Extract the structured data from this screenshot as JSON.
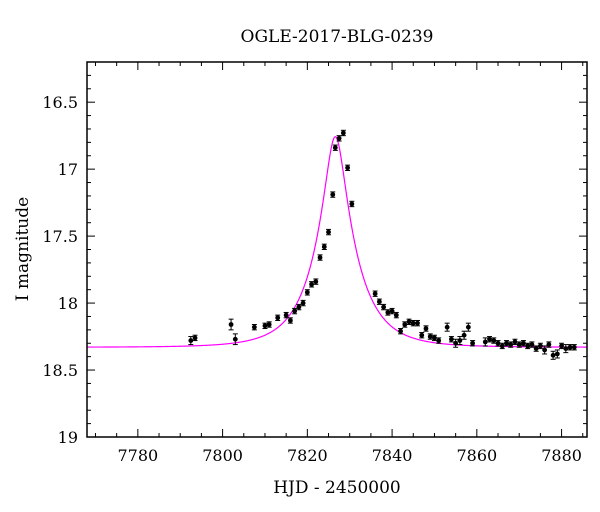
{
  "chart_data": {
    "type": "scatter",
    "title": "OGLE-2017-BLG-0239",
    "xlabel": "HJD - 2450000",
    "ylabel": "I magnitude",
    "xlim": [
      7768,
      7886
    ],
    "ylim": [
      19,
      16.2
    ],
    "y_inverted": true,
    "grid": false,
    "x_ticks": [
      7780,
      7800,
      7820,
      7840,
      7860,
      7880
    ],
    "y_ticks": [
      16.5,
      17,
      17.5,
      18,
      18.5,
      19
    ],
    "x_tick_labels": [
      "7780",
      "7800",
      "7820",
      "7840",
      "7860",
      "7880"
    ],
    "y_tick_labels": [
      "16.5",
      "17",
      "17.5",
      "18",
      "18.5",
      "19"
    ],
    "model": {
      "color": "#ff00ff",
      "curve": "point-lens microlensing fit",
      "t0": 7826.6,
      "u0": 0.24,
      "tE": 9.5,
      "baseline_mag": 18.33
    },
    "points": {
      "color": "#000000",
      "x": [
        7792.5,
        7793.5,
        7802.0,
        7803.0,
        7807.5,
        7810.0,
        7811.0,
        7813.0,
        7815.0,
        7816.0,
        7817.0,
        7818.0,
        7819.0,
        7820.0,
        7821.0,
        7822.0,
        7823.0,
        7824.0,
        7825.0,
        7826.0,
        7826.6,
        7827.5,
        7828.5,
        7829.5,
        7830.5,
        7836.0,
        7837.0,
        7838.0,
        7839.0,
        7840.0,
        7841.0,
        7842.0,
        7843.0,
        7844.0,
        7845.0,
        7846.0,
        7847.0,
        7848.0,
        7849.0,
        7850.0,
        7851.0,
        7853.0,
        7854.0,
        7855.0,
        7856.0,
        7857.0,
        7858.0,
        7859.0,
        7862.0,
        7863.0,
        7864.0,
        7865.0,
        7866.0,
        7867.0,
        7868.0,
        7869.0,
        7870.0,
        7871.0,
        7872.0,
        7873.0,
        7874.0,
        7875.0,
        7876.0,
        7877.0,
        7878.0,
        7879.0,
        7880.0,
        7881.0,
        7882.0,
        7883.0
      ],
      "y": [
        18.28,
        18.26,
        18.16,
        18.27,
        18.18,
        18.17,
        18.16,
        18.11,
        18.09,
        18.13,
        18.06,
        18.03,
        18.0,
        17.92,
        17.86,
        17.84,
        17.66,
        17.58,
        17.47,
        17.19,
        16.84,
        16.77,
        16.73,
        16.99,
        17.26,
        17.93,
        17.99,
        18.03,
        18.07,
        18.06,
        18.09,
        18.21,
        18.16,
        18.14,
        18.15,
        18.15,
        18.24,
        18.19,
        18.25,
        18.26,
        18.28,
        18.18,
        18.27,
        18.3,
        18.28,
        18.24,
        18.18,
        18.3,
        18.29,
        18.27,
        18.28,
        18.3,
        18.32,
        18.3,
        18.31,
        18.29,
        18.31,
        18.3,
        18.32,
        18.31,
        18.34,
        18.32,
        18.35,
        18.31,
        18.39,
        18.38,
        18.32,
        18.34,
        18.33,
        18.33
      ],
      "err": [
        0.03,
        0.02,
        0.04,
        0.04,
        0.02,
        0.02,
        0.02,
        0.02,
        0.02,
        0.02,
        0.02,
        0.02,
        0.02,
        0.02,
        0.02,
        0.02,
        0.02,
        0.02,
        0.02,
        0.02,
        0.02,
        0.02,
        0.02,
        0.02,
        0.02,
        0.02,
        0.02,
        0.02,
        0.02,
        0.02,
        0.02,
        0.02,
        0.02,
        0.02,
        0.02,
        0.02,
        0.02,
        0.02,
        0.02,
        0.02,
        0.02,
        0.03,
        0.02,
        0.03,
        0.03,
        0.03,
        0.03,
        0.02,
        0.03,
        0.02,
        0.02,
        0.02,
        0.02,
        0.02,
        0.02,
        0.02,
        0.02,
        0.02,
        0.02,
        0.02,
        0.02,
        0.02,
        0.03,
        0.02,
        0.03,
        0.03,
        0.02,
        0.03,
        0.02,
        0.02
      ]
    }
  }
}
